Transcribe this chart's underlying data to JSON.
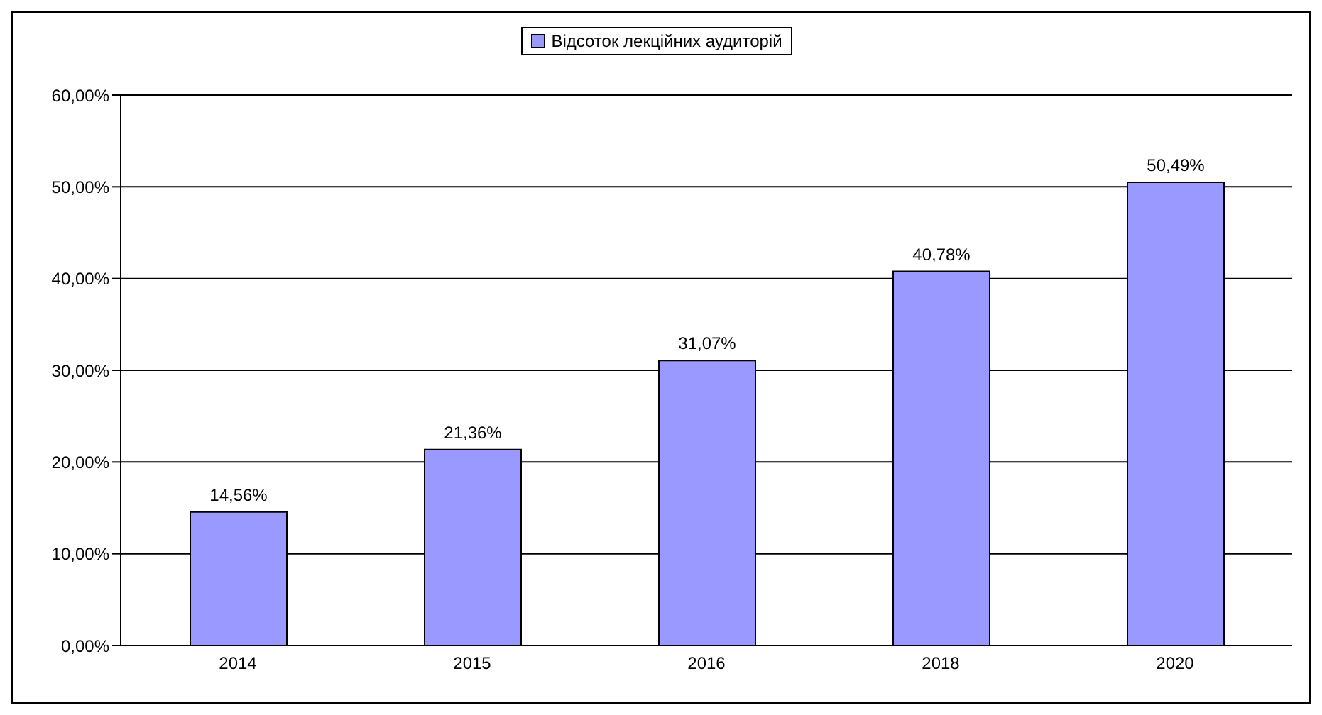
{
  "chart_data": {
    "type": "bar",
    "categories": [
      "2014",
      "2015",
      "2016",
      "2018",
      "2020"
    ],
    "series": [
      {
        "name": "Відсоток лекційних аудиторій",
        "color": "#9999ff",
        "values": [
          14.56,
          21.36,
          31.07,
          40.78,
          50.49
        ],
        "value_labels": [
          "14,56%",
          "21,36%",
          "31,07%",
          "40,78%",
          "50,49%"
        ]
      }
    ],
    "ylim": [
      0,
      60
    ],
    "yticks": [
      {
        "value": 0,
        "label": "0,00%"
      },
      {
        "value": 10,
        "label": "10,00%"
      },
      {
        "value": 20,
        "label": "20,00%"
      },
      {
        "value": 30,
        "label": "30,00%"
      },
      {
        "value": 40,
        "label": "40,00%"
      },
      {
        "value": 50,
        "label": "50,00%"
      },
      {
        "value": 60,
        "label": "60,00%"
      }
    ],
    "grid": "y",
    "legend": "top"
  }
}
